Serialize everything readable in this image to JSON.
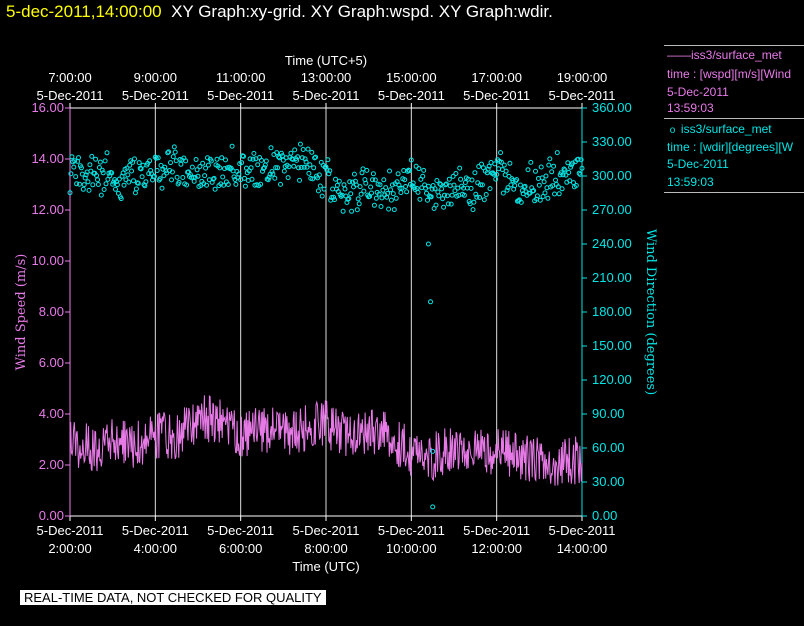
{
  "header": {
    "timestamp": "5-dec-2011,14:00:00",
    "graphs": "XY Graph:xy-grid.  XY Graph:wspd.  XY Graph:wdir."
  },
  "legend": {
    "wspd": {
      "title": "iss3/surface_met",
      "line2": "time : [wspd][m/s][Wind",
      "line3": "5-Dec-2011",
      "line4": "13:59:03",
      "color": "#e87ae8"
    },
    "wdir": {
      "title": "iss3/surface_met",
      "line2": "time : [wdir][degrees][W",
      "line3": "5-Dec-2011",
      "line4": "13:59:03",
      "color": "#00e5e5"
    }
  },
  "footer": {
    "qc_notice": "REAL-TIME DATA, NOT CHECKED FOR QUALITY"
  },
  "chart_data": {
    "type": "line",
    "top_axis": {
      "label": "Time (UTC+5)",
      "ticks": [
        {
          "time": "7:00:00",
          "date": "5-Dec-2011"
        },
        {
          "time": "9:00:00",
          "date": "5-Dec-2011"
        },
        {
          "time": "11:00:00",
          "date": "5-Dec-2011"
        },
        {
          "time": "13:00:00",
          "date": "5-Dec-2011"
        },
        {
          "time": "15:00:00",
          "date": "5-Dec-2011"
        },
        {
          "time": "17:00:00",
          "date": "5-Dec-2011"
        },
        {
          "time": "19:00:00",
          "date": "5-Dec-2011"
        }
      ]
    },
    "bottom_axis": {
      "label": "Time (UTC)",
      "ticks": [
        {
          "time": "2:00:00",
          "date": "5-Dec-2011"
        },
        {
          "time": "4:00:00",
          "date": "5-Dec-2011"
        },
        {
          "time": "6:00:00",
          "date": "5-Dec-2011"
        },
        {
          "time": "8:00:00",
          "date": "5-Dec-2011"
        },
        {
          "time": "10:00:00",
          "date": "5-Dec-2011"
        },
        {
          "time": "12:00:00",
          "date": "5-Dec-2011"
        },
        {
          "time": "14:00:00",
          "date": "5-Dec-2011"
        }
      ],
      "range_hours_utc": [
        2,
        14
      ]
    },
    "left_axis": {
      "label": "Wind Speed (m/s)",
      "range": [
        0,
        16
      ],
      "ticks": [
        "0.00",
        "2.00",
        "4.00",
        "6.00",
        "8.00",
        "10.00",
        "12.00",
        "14.00",
        "16.00"
      ],
      "color": "#e87ae8"
    },
    "right_axis": {
      "label": "Wind Direction (degrees)",
      "range": [
        0,
        360
      ],
      "ticks": [
        "0.00",
        "30.00",
        "60.00",
        "90.00",
        "120.00",
        "150.00",
        "180.00",
        "210.00",
        "240.00",
        "270.00",
        "300.00",
        "330.00",
        "360.00"
      ],
      "color": "#00e5e5"
    },
    "vertical_grid": true,
    "series": [
      {
        "key": "wspd",
        "style": "line",
        "axis": "left",
        "time_utc": [
          2.0,
          2.5,
          3.0,
          3.5,
          4.0,
          4.5,
          5.0,
          5.5,
          6.0,
          6.5,
          7.0,
          7.5,
          8.0,
          8.5,
          9.0,
          9.5,
          10.0,
          10.5,
          11.0,
          11.5,
          12.0,
          12.5,
          13.0,
          13.5,
          14.0
        ],
        "values": [
          3.0,
          2.6,
          2.9,
          2.8,
          3.2,
          3.0,
          3.9,
          3.7,
          3.1,
          3.4,
          3.3,
          3.4,
          3.6,
          3.2,
          3.3,
          3.1,
          2.5,
          2.3,
          2.8,
          2.6,
          2.5,
          2.3,
          2.2,
          2.1,
          2.2
        ]
      },
      {
        "key": "wdir",
        "style": "scatter",
        "axis": "right",
        "time_utc": [
          2.0,
          2.5,
          3.0,
          3.5,
          4.0,
          4.5,
          5.0,
          5.5,
          6.0,
          6.5,
          7.0,
          7.5,
          8.0,
          8.5,
          9.0,
          9.5,
          10.0,
          10.5,
          11.0,
          11.5,
          12.0,
          12.5,
          13.0,
          13.5,
          14.0
        ],
        "values": [
          300,
          303,
          298,
          300,
          305,
          308,
          302,
          300,
          310,
          305,
          312,
          315,
          295,
          285,
          292,
          290,
          298,
          280,
          285,
          290,
          305,
          288,
          295,
          302,
          300
        ],
        "outliers": [
          {
            "time_utc": 10.45,
            "value": 189
          },
          {
            "time_utc": 10.5,
            "value": 8
          },
          {
            "time_utc": 10.5,
            "value": 57
          },
          {
            "time_utc": 10.4,
            "value": 240
          }
        ]
      }
    ]
  }
}
